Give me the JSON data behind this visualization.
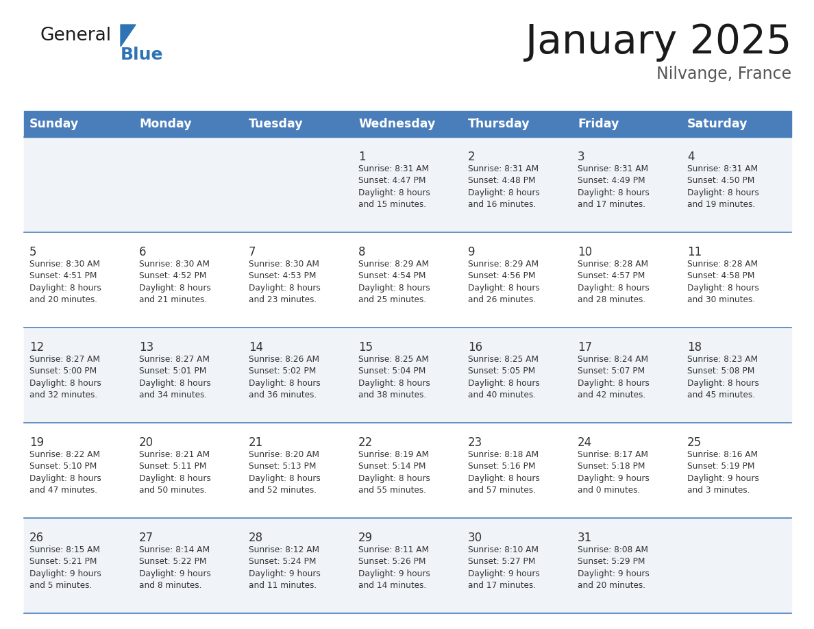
{
  "title": "January 2025",
  "subtitle": "Nilvange, France",
  "header_color": "#4A7EBB",
  "header_text_color": "#FFFFFF",
  "cell_bg_odd": "#F0F4F8",
  "cell_bg_even": "#FFFFFF",
  "line_color": "#4A7EBB",
  "text_color": "#333333",
  "days_of_week": [
    "Sunday",
    "Monday",
    "Tuesday",
    "Wednesday",
    "Thursday",
    "Friday",
    "Saturday"
  ],
  "weeks": [
    [
      {
        "day": null,
        "info": null
      },
      {
        "day": null,
        "info": null
      },
      {
        "day": null,
        "info": null
      },
      {
        "day": 1,
        "info": "Sunrise: 8:31 AM\nSunset: 4:47 PM\nDaylight: 8 hours\nand 15 minutes."
      },
      {
        "day": 2,
        "info": "Sunrise: 8:31 AM\nSunset: 4:48 PM\nDaylight: 8 hours\nand 16 minutes."
      },
      {
        "day": 3,
        "info": "Sunrise: 8:31 AM\nSunset: 4:49 PM\nDaylight: 8 hours\nand 17 minutes."
      },
      {
        "day": 4,
        "info": "Sunrise: 8:31 AM\nSunset: 4:50 PM\nDaylight: 8 hours\nand 19 minutes."
      }
    ],
    [
      {
        "day": 5,
        "info": "Sunrise: 8:30 AM\nSunset: 4:51 PM\nDaylight: 8 hours\nand 20 minutes."
      },
      {
        "day": 6,
        "info": "Sunrise: 8:30 AM\nSunset: 4:52 PM\nDaylight: 8 hours\nand 21 minutes."
      },
      {
        "day": 7,
        "info": "Sunrise: 8:30 AM\nSunset: 4:53 PM\nDaylight: 8 hours\nand 23 minutes."
      },
      {
        "day": 8,
        "info": "Sunrise: 8:29 AM\nSunset: 4:54 PM\nDaylight: 8 hours\nand 25 minutes."
      },
      {
        "day": 9,
        "info": "Sunrise: 8:29 AM\nSunset: 4:56 PM\nDaylight: 8 hours\nand 26 minutes."
      },
      {
        "day": 10,
        "info": "Sunrise: 8:28 AM\nSunset: 4:57 PM\nDaylight: 8 hours\nand 28 minutes."
      },
      {
        "day": 11,
        "info": "Sunrise: 8:28 AM\nSunset: 4:58 PM\nDaylight: 8 hours\nand 30 minutes."
      }
    ],
    [
      {
        "day": 12,
        "info": "Sunrise: 8:27 AM\nSunset: 5:00 PM\nDaylight: 8 hours\nand 32 minutes."
      },
      {
        "day": 13,
        "info": "Sunrise: 8:27 AM\nSunset: 5:01 PM\nDaylight: 8 hours\nand 34 minutes."
      },
      {
        "day": 14,
        "info": "Sunrise: 8:26 AM\nSunset: 5:02 PM\nDaylight: 8 hours\nand 36 minutes."
      },
      {
        "day": 15,
        "info": "Sunrise: 8:25 AM\nSunset: 5:04 PM\nDaylight: 8 hours\nand 38 minutes."
      },
      {
        "day": 16,
        "info": "Sunrise: 8:25 AM\nSunset: 5:05 PM\nDaylight: 8 hours\nand 40 minutes."
      },
      {
        "day": 17,
        "info": "Sunrise: 8:24 AM\nSunset: 5:07 PM\nDaylight: 8 hours\nand 42 minutes."
      },
      {
        "day": 18,
        "info": "Sunrise: 8:23 AM\nSunset: 5:08 PM\nDaylight: 8 hours\nand 45 minutes."
      }
    ],
    [
      {
        "day": 19,
        "info": "Sunrise: 8:22 AM\nSunset: 5:10 PM\nDaylight: 8 hours\nand 47 minutes."
      },
      {
        "day": 20,
        "info": "Sunrise: 8:21 AM\nSunset: 5:11 PM\nDaylight: 8 hours\nand 50 minutes."
      },
      {
        "day": 21,
        "info": "Sunrise: 8:20 AM\nSunset: 5:13 PM\nDaylight: 8 hours\nand 52 minutes."
      },
      {
        "day": 22,
        "info": "Sunrise: 8:19 AM\nSunset: 5:14 PM\nDaylight: 8 hours\nand 55 minutes."
      },
      {
        "day": 23,
        "info": "Sunrise: 8:18 AM\nSunset: 5:16 PM\nDaylight: 8 hours\nand 57 minutes."
      },
      {
        "day": 24,
        "info": "Sunrise: 8:17 AM\nSunset: 5:18 PM\nDaylight: 9 hours\nand 0 minutes."
      },
      {
        "day": 25,
        "info": "Sunrise: 8:16 AM\nSunset: 5:19 PM\nDaylight: 9 hours\nand 3 minutes."
      }
    ],
    [
      {
        "day": 26,
        "info": "Sunrise: 8:15 AM\nSunset: 5:21 PM\nDaylight: 9 hours\nand 5 minutes."
      },
      {
        "day": 27,
        "info": "Sunrise: 8:14 AM\nSunset: 5:22 PM\nDaylight: 9 hours\nand 8 minutes."
      },
      {
        "day": 28,
        "info": "Sunrise: 8:12 AM\nSunset: 5:24 PM\nDaylight: 9 hours\nand 11 minutes."
      },
      {
        "day": 29,
        "info": "Sunrise: 8:11 AM\nSunset: 5:26 PM\nDaylight: 9 hours\nand 14 minutes."
      },
      {
        "day": 30,
        "info": "Sunrise: 8:10 AM\nSunset: 5:27 PM\nDaylight: 9 hours\nand 17 minutes."
      },
      {
        "day": 31,
        "info": "Sunrise: 8:08 AM\nSunset: 5:29 PM\nDaylight: 9 hours\nand 20 minutes."
      },
      {
        "day": null,
        "info": null
      }
    ]
  ],
  "logo_general_color": "#1a1a1a",
  "logo_blue_color": "#2E74B5",
  "logo_triangle_color": "#2E74B5"
}
